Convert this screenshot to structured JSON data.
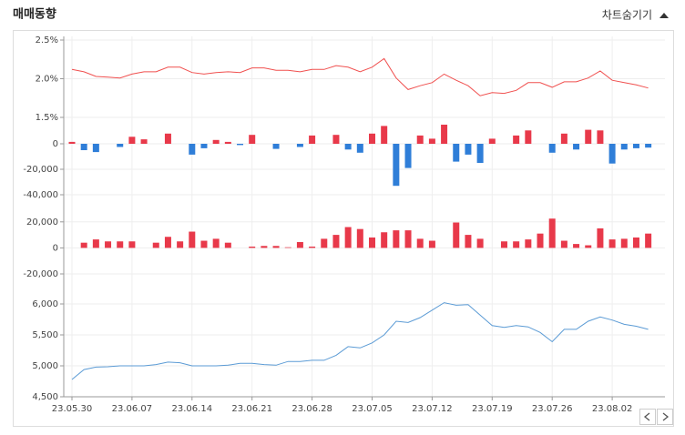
{
  "header": {
    "title": "매매동향",
    "toggle": "차트숨기기"
  },
  "chart_data": {
    "type": "panels",
    "grid": true,
    "categories": [
      "23.05.30",
      null,
      null,
      null,
      null,
      "23.06.07",
      null,
      null,
      null,
      null,
      "23.06.14",
      null,
      null,
      null,
      null,
      "23.06.21",
      null,
      null,
      null,
      null,
      "23.06.28",
      null,
      null,
      null,
      null,
      "23.07.05",
      null,
      null,
      null,
      null,
      "23.07.12",
      null,
      null,
      null,
      null,
      "23.07.19",
      null,
      null,
      null,
      null,
      "23.07.26",
      null,
      null,
      null,
      null,
      "23.08.02",
      null,
      null,
      null
    ],
    "panels": [
      {
        "type": "line",
        "color": "#f0504f",
        "ylim": [
          1.5,
          2.5
        ],
        "yticks": [
          {
            "value": 2.5,
            "label": "2.5%"
          },
          {
            "value": 2.0,
            "label": "2.0%"
          },
          {
            "value": 1.5,
            "label": "1.5%"
          }
        ],
        "values": [
          2.12,
          2.09,
          2.03,
          2.02,
          2.01,
          2.06,
          2.09,
          2.09,
          2.15,
          2.15,
          2.08,
          2.06,
          2.08,
          2.09,
          2.08,
          2.14,
          2.14,
          2.11,
          2.11,
          2.09,
          2.12,
          2.12,
          2.17,
          2.15,
          2.09,
          2.15,
          2.26,
          2.01,
          1.86,
          1.91,
          1.95,
          2.06,
          1.98,
          1.91,
          1.78,
          1.82,
          1.81,
          1.85,
          1.95,
          1.95,
          1.89,
          1.96,
          1.96,
          2.01,
          2.1,
          1.98,
          1.95,
          1.92,
          1.88
        ]
      },
      {
        "type": "bar",
        "positive_color": "#e8394a",
        "negative_color": "#2f7ed8",
        "ylim": [
          -45000,
          15000
        ],
        "yticks": [
          0,
          {
            "value": -20000,
            "label": "-20,000"
          },
          {
            "value": -40000,
            "label": "-40,000"
          }
        ],
        "values": [
          1500,
          -5000,
          -6500,
          0,
          -2500,
          5500,
          3500,
          0,
          8000,
          0,
          -8500,
          -3500,
          3000,
          1500,
          -1000,
          7000,
          0,
          -4000,
          0,
          -2500,
          6500,
          0,
          7000,
          -4500,
          -7000,
          8000,
          14000,
          -33000,
          -19000,
          6500,
          4000,
          15000,
          -14000,
          -8500,
          -15000,
          4000,
          0,
          6500,
          10500,
          0,
          -7000,
          8000,
          -4500,
          11000,
          10500,
          -15500,
          -4500,
          -3500,
          -3000
        ]
      },
      {
        "type": "bar",
        "positive_color": "#e8394a",
        "negative_color": "#2f7ed8",
        "ylim": [
          -20000,
          30000
        ],
        "yticks": [
          {
            "value": 20000,
            "label": "20,000"
          },
          0,
          {
            "value": -20000,
            "label": "-20,000"
          }
        ],
        "values": [
          0,
          4000,
          6500,
          5000,
          5000,
          5000,
          0,
          4000,
          8500,
          5000,
          12500,
          5500,
          7000,
          4000,
          0,
          1000,
          1500,
          1500,
          500,
          4500,
          1000,
          7000,
          10000,
          16000,
          14500,
          8000,
          12000,
          13500,
          13500,
          7000,
          5500,
          0,
          19500,
          10000,
          7000,
          0,
          5000,
          5000,
          6500,
          11000,
          22500,
          5500,
          3000,
          2000,
          15000,
          6500,
          7000,
          8000,
          11000
        ]
      },
      {
        "type": "line",
        "color": "#5b9bd5",
        "ylim": [
          4500,
          6250
        ],
        "yticks": [
          {
            "value": 6000,
            "label": "6,000"
          },
          {
            "value": 5500,
            "label": "5,500"
          },
          {
            "value": 5000,
            "label": "5,000"
          },
          {
            "value": 4500,
            "label": "4,500"
          }
        ],
        "values": [
          4780,
          4940,
          4980,
          4985,
          5000,
          5000,
          5000,
          5020,
          5060,
          5050,
          5000,
          5000,
          5000,
          5010,
          5040,
          5040,
          5020,
          5010,
          5070,
          5070,
          5090,
          5090,
          5170,
          5310,
          5290,
          5370,
          5500,
          5720,
          5700,
          5780,
          5900,
          6020,
          5980,
          5990,
          5820,
          5650,
          5620,
          5650,
          5630,
          5540,
          5390,
          5590,
          5590,
          5720,
          5790,
          5740,
          5670,
          5640,
          5590
        ]
      }
    ]
  }
}
